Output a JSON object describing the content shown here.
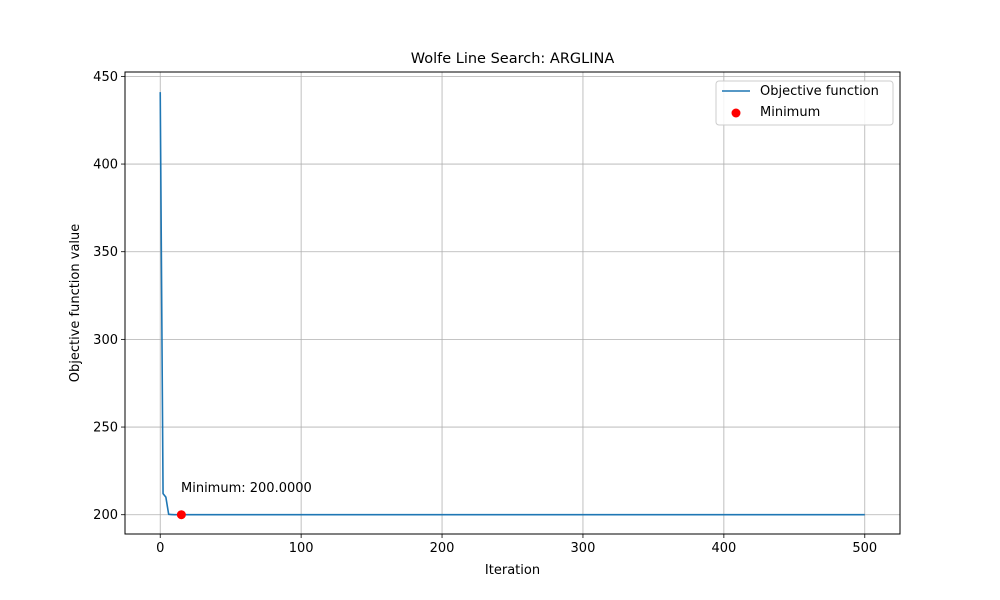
{
  "chart_data": {
    "type": "line",
    "title": "Wolfe Line Search: ARGLINA",
    "xlabel": "Iteration",
    "ylabel": "Objective function value",
    "xlim": [
      -25,
      525
    ],
    "ylim": [
      189,
      452.5
    ],
    "xticks": [
      0,
      100,
      200,
      300,
      400,
      500
    ],
    "yticks": [
      200,
      250,
      300,
      350,
      400,
      450
    ],
    "grid": true,
    "legend_position": "top-right",
    "series": [
      {
        "name": "Objective function",
        "color": "#1f77b4",
        "x": [
          0,
          2,
          4,
          6,
          8,
          10,
          12,
          14,
          20,
          50,
          100,
          200,
          300,
          400,
          500
        ],
        "y": [
          441,
          212,
          210,
          200.2,
          200.1,
          200,
          200,
          200,
          200,
          200,
          200,
          200,
          200,
          200,
          200
        ]
      }
    ],
    "minimum": {
      "name": "Minimum",
      "x": 15,
      "y": 200,
      "color": "#ff0000",
      "annotation": "Minimum: 200.0000"
    }
  }
}
